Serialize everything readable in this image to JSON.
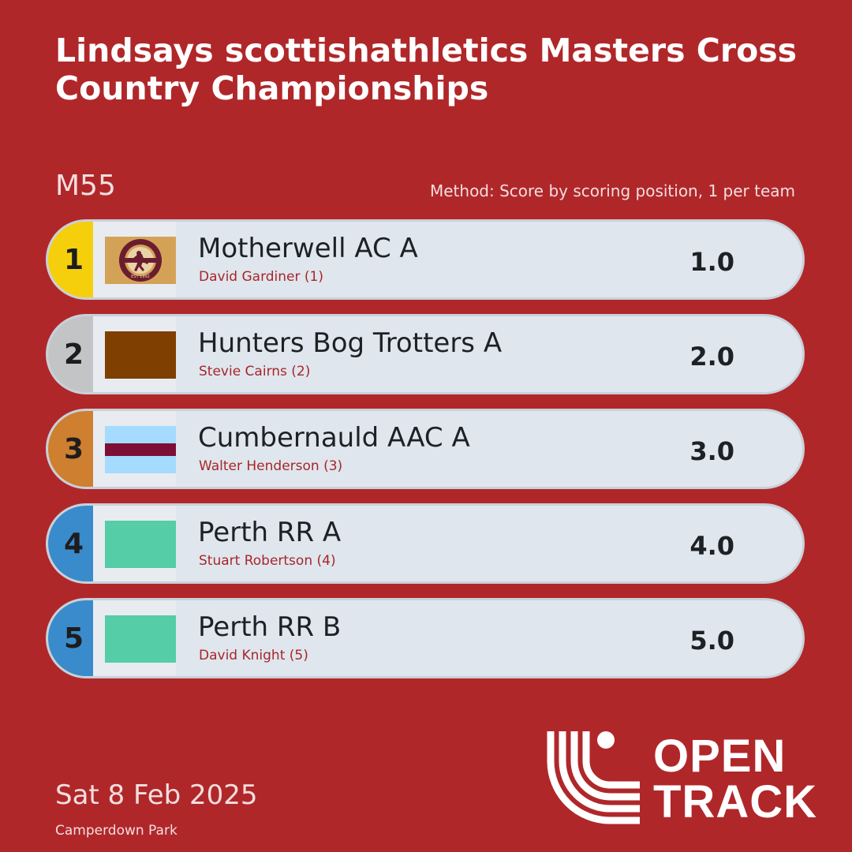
{
  "title": "Lindsays scottishathletics Masters Cross Country Championships",
  "category": "M55",
  "method": "Method: Score by scoring position, 1 per team",
  "results": [
    {
      "rank": "1",
      "team": "Motherwell AC A",
      "athlete": "David Gardiner (1)",
      "score": "1.0",
      "medal": "gold",
      "logo": "motherwell-athletic-club-badge",
      "logo_text": "MOTHERWELL ATHLETIC CLUB",
      "logo_est": "EST 1992"
    },
    {
      "rank": "2",
      "team": "Hunters Bog Trotters A",
      "athlete": "Stevie Cairns (2)",
      "score": "2.0",
      "medal": "silver",
      "swatch_colors": [
        "#7f3f00"
      ]
    },
    {
      "rank": "3",
      "team": "Cumbernauld AAC A",
      "athlete": "Walter Henderson (3)",
      "score": "3.0",
      "medal": "bronze",
      "swatch_colors": [
        "#a4dbff",
        "#7d0f35",
        "#a4dbff"
      ]
    },
    {
      "rank": "4",
      "team": "Perth RR A",
      "athlete": "Stuart Robertson (4)",
      "score": "4.0",
      "medal": "blue",
      "swatch_colors": [
        "#55cda7"
      ]
    },
    {
      "rank": "5",
      "team": "Perth RR B",
      "athlete": "David Knight (5)",
      "score": "5.0",
      "medal": "blue",
      "swatch_colors": [
        "#55cda7"
      ]
    }
  ],
  "date": "Sat 8 Feb 2025",
  "venue": "Camperdown Park",
  "brand": {
    "line1": "OPEN",
    "line2": "TRACK",
    "icon": "opentrack-logo-icon"
  },
  "colors": {
    "background": "#b0272a",
    "row": "#dfe6ed",
    "gold": "#f5cf0c",
    "silver": "#c3c4c5",
    "bronze": "#cf7f30",
    "blue": "#3a8bcb",
    "athlete_text": "#a8262a"
  }
}
